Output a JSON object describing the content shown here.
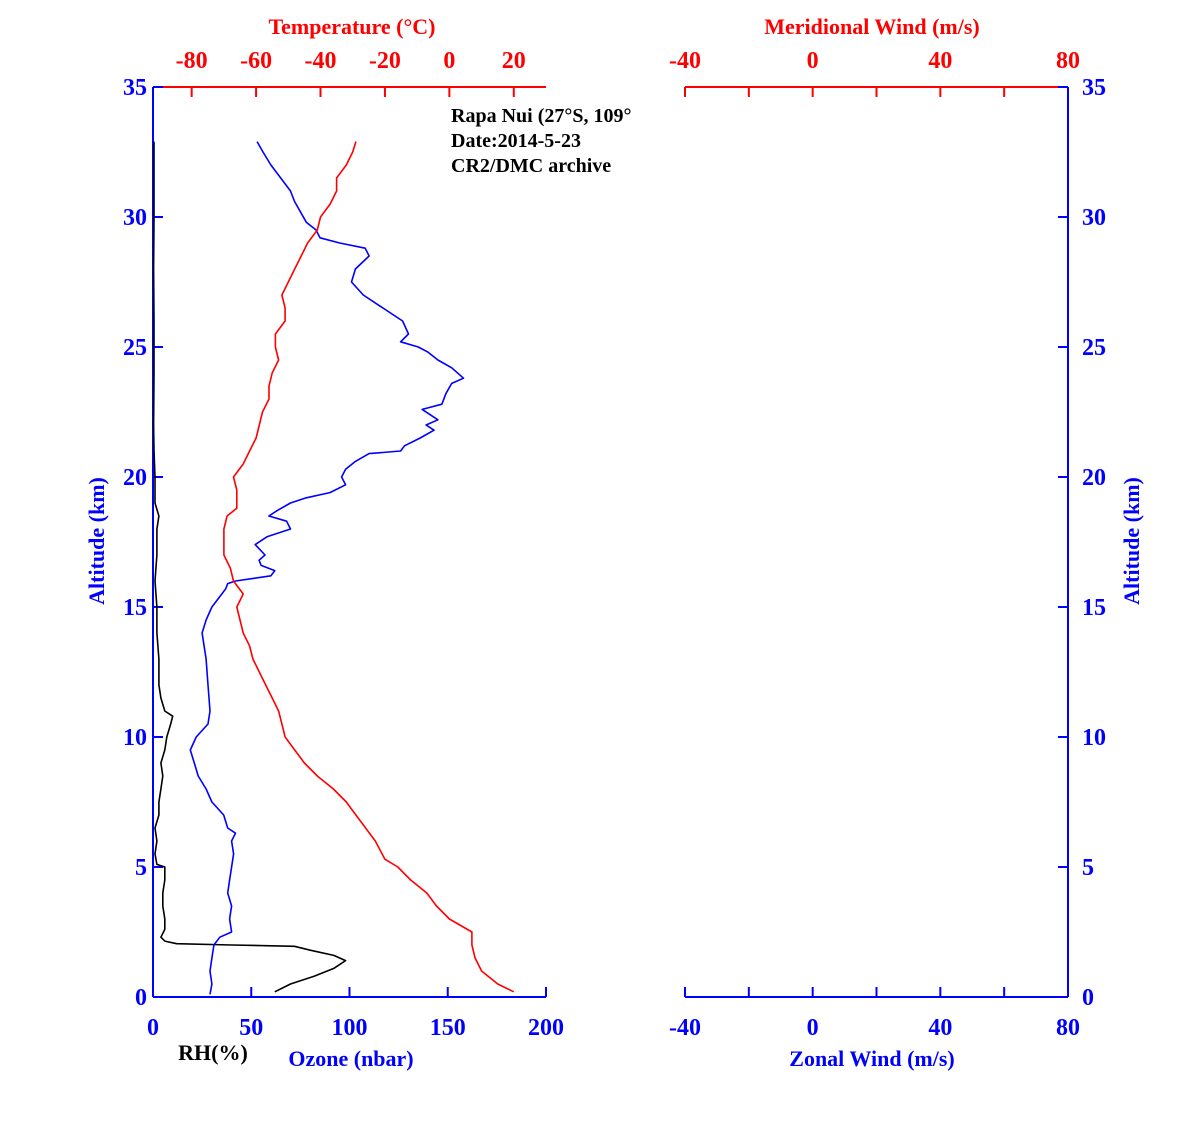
{
  "colors": {
    "red": "#ff0000",
    "blue": "#0000ff",
    "black": "#000000"
  },
  "annotation": [
    "Rapa Nui (27°S, 109°",
    "Date:2014-5-23",
    "CR2/DMC archive"
  ],
  "chart_data": [
    {
      "type": "line",
      "panel": "left",
      "ylabel": "Altitude (km)",
      "ylim": [
        0,
        35
      ],
      "yticks": [
        0,
        5,
        10,
        15,
        20,
        25,
        30,
        35
      ],
      "axes": {
        "rh": {
          "label": "RH(%)",
          "ticks": [
            0,
            50,
            100,
            150,
            200
          ],
          "range": [
            0,
            200
          ],
          "position": "bottom"
        },
        "ozone": {
          "label": "Ozone (nbar)",
          "range": [
            0,
            200
          ],
          "position": "bottom"
        },
        "temperature": {
          "label": "Temperature (°C)",
          "ticks": [
            -80,
            -60,
            -40,
            -20,
            0,
            20
          ],
          "range": [
            -92,
            30
          ],
          "position": "top"
        }
      },
      "series": [
        {
          "name": "RH(%)",
          "axis": "rh",
          "color": "#000000",
          "points": [
            [
              62,
              0.2
            ],
            [
              70,
              0.5
            ],
            [
              82,
              0.8
            ],
            [
              92,
              1.1
            ],
            [
              98,
              1.4
            ],
            [
              92,
              1.6
            ],
            [
              80,
              1.8
            ],
            [
              72,
              1.95
            ],
            [
              40,
              2.0
            ],
            [
              12,
              2.05
            ],
            [
              6,
              2.15
            ],
            [
              4,
              2.3
            ],
            [
              6,
              2.6
            ],
            [
              6,
              3
            ],
            [
              5,
              3.5
            ],
            [
              5,
              4
            ],
            [
              6,
              4.5
            ],
            [
              6,
              5
            ],
            [
              2,
              5.1
            ],
            [
              1,
              5.5
            ],
            [
              2,
              6
            ],
            [
              1,
              6.5
            ],
            [
              3,
              7
            ],
            [
              3,
              7.5
            ],
            [
              4,
              8
            ],
            [
              5,
              8.5
            ],
            [
              4,
              9
            ],
            [
              6,
              9.5
            ],
            [
              7,
              10
            ],
            [
              9,
              10.5
            ],
            [
              10,
              10.8
            ],
            [
              6,
              11
            ],
            [
              4,
              11.5
            ],
            [
              3,
              12
            ],
            [
              3,
              13
            ],
            [
              2,
              14
            ],
            [
              2,
              15
            ],
            [
              1,
              16
            ],
            [
              2,
              17
            ],
            [
              2,
              18
            ],
            [
              3,
              18.5
            ],
            [
              1,
              19
            ],
            [
              1,
              20
            ],
            [
              0.5,
              21
            ],
            [
              0.3,
              22
            ],
            [
              0.5,
              24
            ],
            [
              0.5,
              26
            ],
            [
              0.3,
              28
            ],
            [
              0.5,
              30
            ],
            [
              0.5,
              32
            ],
            [
              0.5,
              32.9
            ]
          ]
        },
        {
          "name": "Ozone (nbar)",
          "axis": "ozone",
          "color": "#0000ff",
          "points": [
            [
              29,
              0.1
            ],
            [
              30,
              0.5
            ],
            [
              29,
              1
            ],
            [
              30,
              1.5
            ],
            [
              31,
              2
            ],
            [
              34,
              2.3
            ],
            [
              40,
              2.5
            ],
            [
              39,
              3
            ],
            [
              40,
              3.5
            ],
            [
              38,
              4
            ],
            [
              39,
              4.5
            ],
            [
              40,
              5
            ],
            [
              41,
              5.5
            ],
            [
              40,
              6
            ],
            [
              42,
              6.3
            ],
            [
              38,
              6.5
            ],
            [
              36,
              7
            ],
            [
              30,
              7.5
            ],
            [
              27,
              8
            ],
            [
              23,
              8.5
            ],
            [
              21,
              9
            ],
            [
              19,
              9.5
            ],
            [
              22,
              10
            ],
            [
              28,
              10.5
            ],
            [
              29,
              11
            ],
            [
              28,
              12
            ],
            [
              27,
              13
            ],
            [
              25,
              14
            ],
            [
              27,
              14.5
            ],
            [
              30,
              15
            ],
            [
              35,
              15.5
            ],
            [
              37,
              15.7
            ],
            [
              38,
              15.9
            ],
            [
              42,
              16
            ],
            [
              51,
              16.1
            ],
            [
              60,
              16.2
            ],
            [
              62,
              16.4
            ],
            [
              55,
              16.6
            ],
            [
              54,
              16.8
            ],
            [
              57,
              17
            ],
            [
              52,
              17.4
            ],
            [
              58,
              17.7
            ],
            [
              70,
              18
            ],
            [
              68,
              18.3
            ],
            [
              59,
              18.5
            ],
            [
              63,
              18.7
            ],
            [
              70,
              19
            ],
            [
              78,
              19.2
            ],
            [
              90,
              19.4
            ],
            [
              98,
              19.7
            ],
            [
              96,
              20
            ],
            [
              98,
              20.3
            ],
            [
              103,
              20.6
            ],
            [
              110,
              20.9
            ],
            [
              126,
              21
            ],
            [
              128,
              21.2
            ],
            [
              136,
              21.5
            ],
            [
              143,
              21.8
            ],
            [
              139,
              22
            ],
            [
              145,
              22.2
            ],
            [
              137,
              22.6
            ],
            [
              147,
              22.8
            ],
            [
              149,
              23.2
            ],
            [
              152,
              23.6
            ],
            [
              158,
              23.8
            ],
            [
              152,
              24.2
            ],
            [
              145,
              24.5
            ],
            [
              140,
              24.8
            ],
            [
              135,
              25
            ],
            [
              126,
              25.2
            ],
            [
              130,
              25.5
            ],
            [
              127,
              26
            ],
            [
              115,
              26.6
            ],
            [
              107,
              27
            ],
            [
              101,
              27.5
            ],
            [
              103,
              28
            ],
            [
              110,
              28.5
            ],
            [
              108,
              28.8
            ],
            [
              95,
              29
            ],
            [
              85,
              29.2
            ],
            [
              83,
              29.5
            ],
            [
              78,
              29.8
            ],
            [
              75,
              30.2
            ],
            [
              72,
              30.6
            ],
            [
              70,
              31
            ],
            [
              65,
              31.5
            ],
            [
              60,
              32
            ],
            [
              56,
              32.5
            ],
            [
              53,
              32.9
            ]
          ]
        },
        {
          "name": "Temperature (°C)",
          "axis": "temperature",
          "color": "#ff0000",
          "points": [
            [
              20,
              0.2
            ],
            [
              15,
              0.5
            ],
            [
              10,
              1
            ],
            [
              8,
              1.5
            ],
            [
              7,
              2
            ],
            [
              7,
              2.5
            ],
            [
              0,
              3
            ],
            [
              -4,
              3.5
            ],
            [
              -7,
              4
            ],
            [
              -12,
              4.5
            ],
            [
              -16,
              5
            ],
            [
              -20,
              5.3
            ],
            [
              -23,
              6
            ],
            [
              -26,
              6.5
            ],
            [
              -29,
              7
            ],
            [
              -32,
              7.5
            ],
            [
              -36,
              8
            ],
            [
              -41,
              8.5
            ],
            [
              -45,
              9
            ],
            [
              -48,
              9.5
            ],
            [
              -51,
              10
            ],
            [
              -52,
              10.5
            ],
            [
              -53,
              11
            ],
            [
              -55,
              11.5
            ],
            [
              -57,
              12
            ],
            [
              -59,
              12.5
            ],
            [
              -61,
              13
            ],
            [
              -62,
              13.5
            ],
            [
              -64,
              14
            ],
            [
              -65,
              14.5
            ],
            [
              -66,
              15
            ],
            [
              -64,
              15.5
            ],
            [
              -67,
              16
            ],
            [
              -68,
              16.5
            ],
            [
              -70,
              17
            ],
            [
              -70,
              17.5
            ],
            [
              -70,
              18
            ],
            [
              -69,
              18.5
            ],
            [
              -66,
              18.8
            ],
            [
              -66,
              19.5
            ],
            [
              -67,
              20
            ],
            [
              -64,
              20.5
            ],
            [
              -62,
              21
            ],
            [
              -60,
              21.5
            ],
            [
              -59,
              22
            ],
            [
              -58,
              22.5
            ],
            [
              -56,
              23
            ],
            [
              -56,
              23.5
            ],
            [
              -55,
              24
            ],
            [
              -53,
              24.5
            ],
            [
              -54,
              25
            ],
            [
              -54,
              25.5
            ],
            [
              -51,
              26
            ],
            [
              -51,
              26.5
            ],
            [
              -52,
              27
            ],
            [
              -50,
              27.5
            ],
            [
              -48,
              28
            ],
            [
              -46,
              28.5
            ],
            [
              -44,
              29
            ],
            [
              -41,
              29.5
            ],
            [
              -40,
              30
            ],
            [
              -37,
              30.5
            ],
            [
              -35,
              31
            ],
            [
              -35,
              31.5
            ],
            [
              -32,
              32
            ],
            [
              -30,
              32.5
            ],
            [
              -29,
              32.9
            ]
          ]
        }
      ]
    },
    {
      "type": "line",
      "panel": "right",
      "ylabel": "Altitude (km)",
      "ylim": [
        0,
        35
      ],
      "yticks": [
        0,
        5,
        10,
        15,
        20,
        25,
        30,
        35
      ],
      "axes": {
        "zonal": {
          "label": "Zonal Wind (m/s)",
          "ticks": [
            -40,
            0,
            40,
            80
          ],
          "range": [
            -40,
            80
          ],
          "position": "bottom"
        },
        "meridional": {
          "label": "Meridional Wind (m/s)",
          "ticks": [
            -40,
            0,
            40,
            80
          ],
          "range": [
            -40,
            80
          ],
          "position": "top"
        }
      },
      "series": []
    }
  ]
}
